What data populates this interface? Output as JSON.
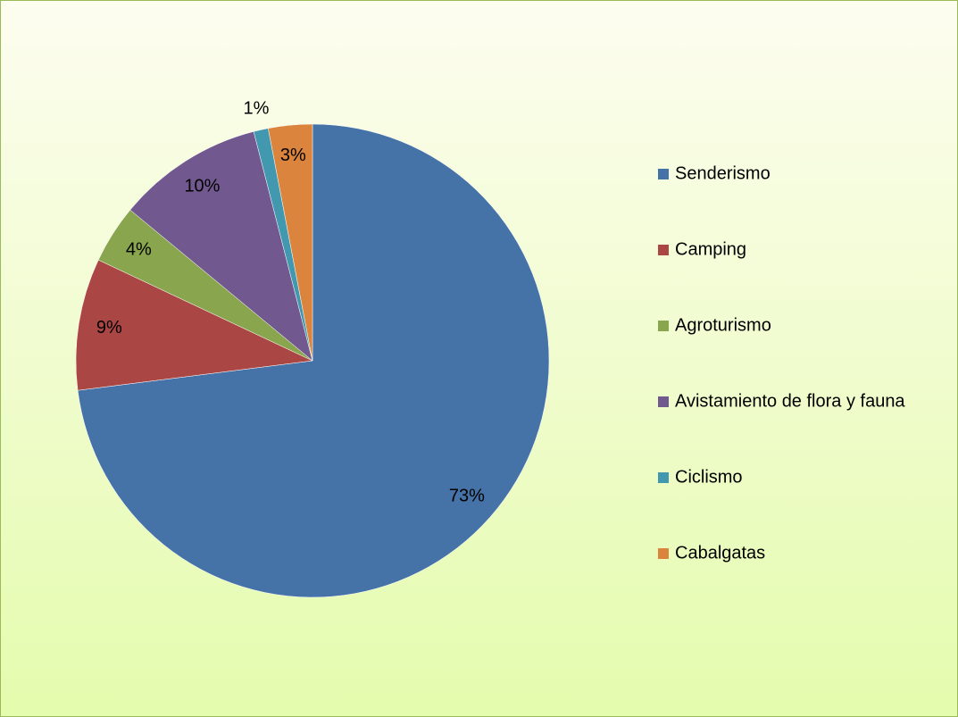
{
  "chart_data": {
    "type": "pie",
    "categories": [
      "Senderismo",
      "Camping",
      "Agroturismo",
      "Avistamiento de flora y fauna",
      "Ciclismo",
      "Cabalgatas"
    ],
    "values": [
      73,
      9,
      4,
      10,
      1,
      3
    ],
    "value_labels": [
      "73%",
      "9%",
      "4%",
      "10%",
      "1%",
      "3%"
    ],
    "colors": [
      "#4572a7",
      "#aa4643",
      "#89a54e",
      "#71588f",
      "#4198af",
      "#db843d"
    ],
    "legend": "right"
  }
}
